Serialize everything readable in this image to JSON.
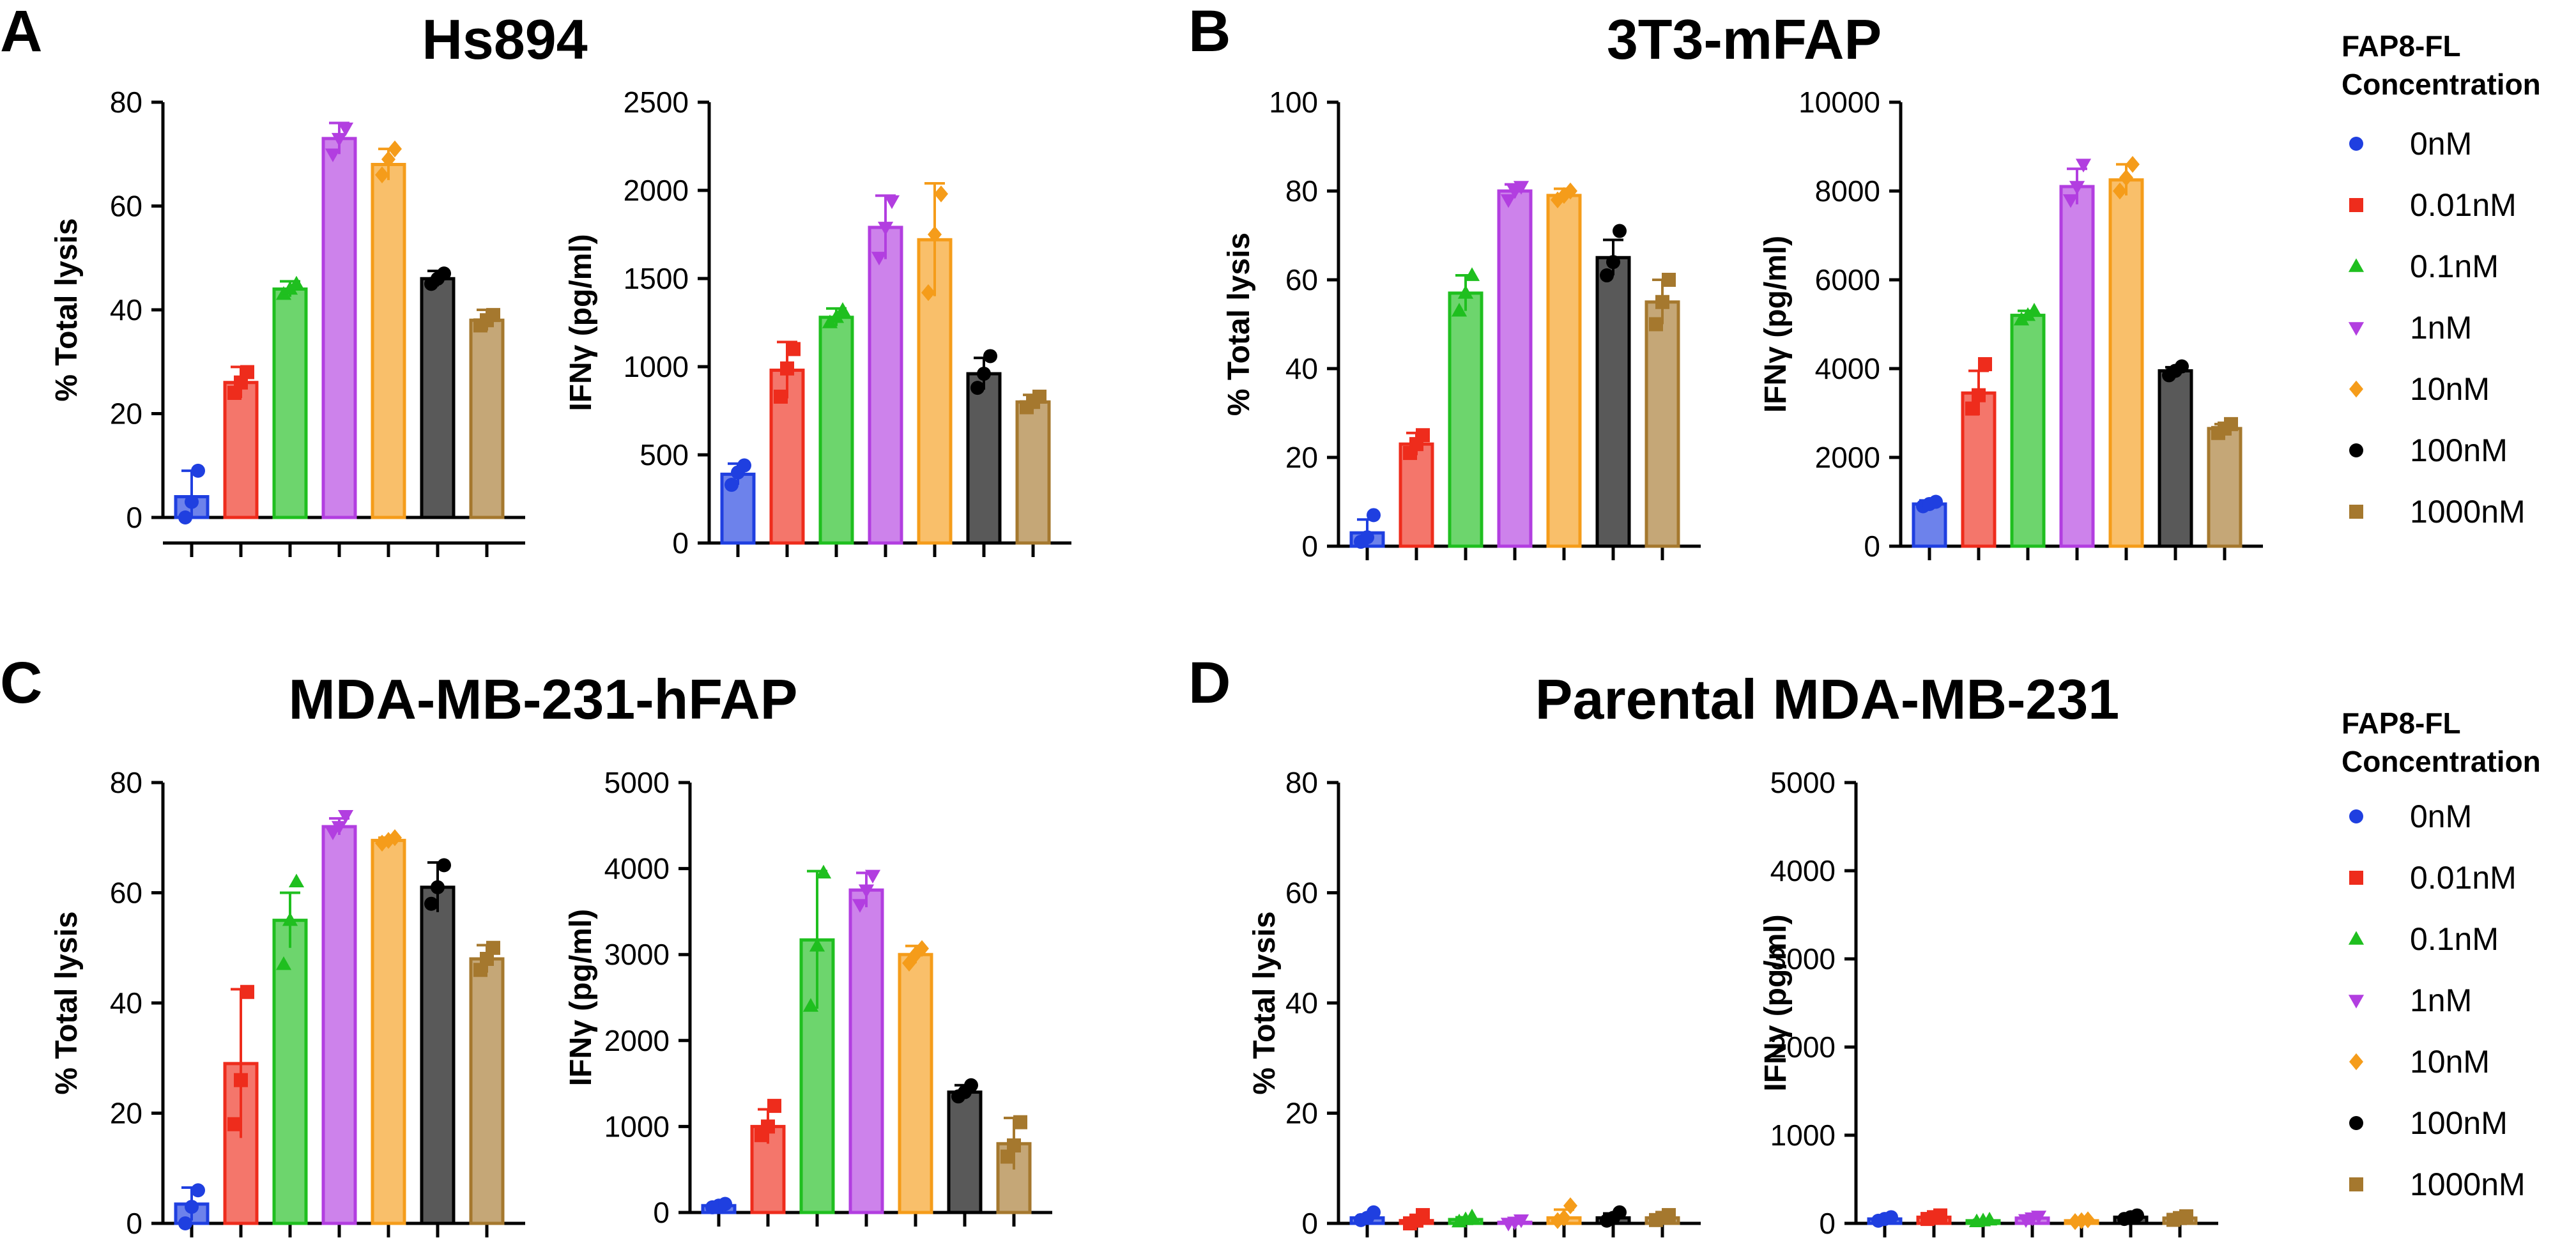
{
  "figure": {
    "panels": [
      {
        "letter": "A",
        "title": "Hs894"
      },
      {
        "letter": "B",
        "title": "3T3-mFAP"
      },
      {
        "letter": "C",
        "title": "MDA-MB-231-hFAP"
      },
      {
        "letter": "D",
        "title": "Parental MDA-MB-231"
      }
    ],
    "legends": [
      {
        "title_line1": "FAP8-FL",
        "title_line2": "Concentration",
        "entries": [
          {
            "label": "0nM",
            "color": "#1f3fe0",
            "marker": "circle"
          },
          {
            "label": "0.01nM",
            "color": "#ee2c1c",
            "marker": "square"
          },
          {
            "label": "0.1nM",
            "color": "#1fbf1f",
            "marker": "triangle-up"
          },
          {
            "label": "1nM",
            "color": "#b23ee0",
            "marker": "triangle-down"
          },
          {
            "label": "10nM",
            "color": "#f59c1a",
            "marker": "diamond"
          },
          {
            "label": "100nM",
            "color": "#000000",
            "marker": "circle"
          },
          {
            "label": "1000nM",
            "color": "#a5782e",
            "marker": "square"
          }
        ]
      },
      {
        "title_line1": "FAP8-FL",
        "title_line2": "Concentration",
        "entries": [
          {
            "label": "0nM",
            "color": "#1f3fe0",
            "marker": "circle"
          },
          {
            "label": "0.01nM",
            "color": "#ee2c1c",
            "marker": "square"
          },
          {
            "label": "0.1nM",
            "color": "#1fbf1f",
            "marker": "triangle-up"
          },
          {
            "label": "1nM",
            "color": "#b23ee0",
            "marker": "triangle-down"
          },
          {
            "label": "10nM",
            "color": "#f59c1a",
            "marker": "diamond"
          },
          {
            "label": "100nM",
            "color": "#000000",
            "marker": "circle"
          },
          {
            "label": "1000nM",
            "color": "#a5782e",
            "marker": "square"
          }
        ]
      }
    ]
  },
  "chart_data": [
    {
      "type": "bar",
      "panel": "A",
      "title": "Hs894",
      "ylabel": "% Total lysis",
      "categories": [
        "0nM",
        "0.01nM",
        "0.1nM",
        "1nM",
        "10nM",
        "100nM",
        "1000nM"
      ],
      "ylim": [
        0,
        80
      ],
      "yticks": [
        "0",
        "20",
        "40",
        "60",
        "80"
      ],
      "values": [
        4,
        26,
        44,
        73,
        68,
        46,
        38
      ],
      "errors": [
        5,
        3,
        1.5,
        3,
        3,
        1.5,
        2
      ],
      "points": [
        [
          0,
          3,
          9
        ],
        [
          24,
          26,
          28
        ],
        [
          43,
          44,
          45
        ],
        [
          70,
          73,
          75
        ],
        [
          66,
          69,
          71
        ],
        [
          45,
          46,
          47
        ],
        [
          37,
          38,
          39
        ]
      ]
    },
    {
      "type": "bar",
      "panel": "A",
      "title": "Hs894",
      "ylabel": "IFNγ (pg/ml)",
      "categories": [
        "0nM",
        "0.01nM",
        "0.1nM",
        "1nM",
        "10nM",
        "100nM",
        "1000nM"
      ],
      "ylim": [
        0,
        2500
      ],
      "yticks": [
        "0",
        "500",
        "1000",
        "1500",
        "2000",
        "2500"
      ],
      "values": [
        390,
        980,
        1280,
        1790,
        1720,
        960,
        800
      ],
      "errors": [
        60,
        160,
        50,
        180,
        320,
        90,
        40
      ],
      "points": [
        [
          330,
          400,
          440
        ],
        [
          830,
          990,
          1100
        ],
        [
          1250,
          1280,
          1320
        ],
        [
          1620,
          1790,
          1940
        ],
        [
          1420,
          1750,
          1980
        ],
        [
          880,
          960,
          1060
        ],
        [
          770,
          800,
          830
        ]
      ]
    },
    {
      "type": "bar",
      "panel": "B",
      "title": "3T3-mFAP",
      "ylabel": "% Total lysis",
      "categories": [
        "0nM",
        "0.01nM",
        "0.1nM",
        "1nM",
        "10nM",
        "100nM",
        "1000nM"
      ],
      "ylim": [
        0,
        100
      ],
      "yticks": [
        "0",
        "20",
        "40",
        "60",
        "80",
        "100"
      ],
      "values": [
        3,
        23,
        57,
        80,
        79,
        65,
        55
      ],
      "errors": [
        3,
        2.5,
        4,
        1.5,
        1.5,
        4,
        5
      ],
      "points": [
        [
          1,
          2,
          7
        ],
        [
          21,
          23,
          25
        ],
        [
          53,
          57,
          61
        ],
        [
          78,
          80,
          81
        ],
        [
          78,
          79,
          80
        ],
        [
          61,
          64,
          71
        ],
        [
          50,
          55,
          60
        ]
      ]
    },
    {
      "type": "bar",
      "panel": "B",
      "title": "3T3-mFAP",
      "ylabel": "IFNγ (pg/ml)",
      "categories": [
        "0nM",
        "0.01nM",
        "0.1nM",
        "1nM",
        "10nM",
        "100nM",
        "1000nM"
      ],
      "ylim": [
        0,
        10000
      ],
      "yticks": [
        "0",
        "2000",
        "4000",
        "6000",
        "8000",
        "10000"
      ],
      "values": [
        950,
        3450,
        5200,
        8100,
        8250,
        3950,
        2650
      ],
      "errors": [
        80,
        500,
        100,
        400,
        350,
        80,
        100
      ],
      "points": [
        [
          900,
          950,
          1000
        ],
        [
          3100,
          3400,
          4100
        ],
        [
          5100,
          5200,
          5300
        ],
        [
          7800,
          8100,
          8600
        ],
        [
          8000,
          8300,
          8600
        ],
        [
          3850,
          3950,
          4050
        ],
        [
          2550,
          2650,
          2750
        ]
      ]
    },
    {
      "type": "bar",
      "panel": "C",
      "title": "MDA-MB-231-hFAP",
      "ylabel": "% Total lysis",
      "categories": [
        "0nM",
        "0.01nM",
        "0.1nM",
        "1nM",
        "10nM",
        "100nM",
        "1000nM"
      ],
      "ylim": [
        0,
        80
      ],
      "yticks": [
        "0",
        "20",
        "40",
        "60",
        "80"
      ],
      "values": [
        3.5,
        29,
        55,
        72,
        69.5,
        61,
        48
      ],
      "errors": [
        3,
        13.5,
        5,
        1.5,
        0.5,
        4.5,
        2.5
      ],
      "points": [
        [
          0,
          3,
          6
        ],
        [
          18,
          26,
          42
        ],
        [
          47,
          55,
          62
        ],
        [
          71,
          72,
          74
        ],
        [
          69,
          69.5,
          70
        ],
        [
          58,
          61,
          65
        ],
        [
          46,
          48,
          50
        ]
      ]
    },
    {
      "type": "bar",
      "panel": "C",
      "title": "MDA-MB-231-hFAP",
      "ylabel": "IFNγ (pg/ml)",
      "categories": [
        "0nM",
        "0.01nM",
        "0.1nM",
        "1nM",
        "10nM",
        "100nM",
        "1000nM"
      ],
      "ylim": [
        0,
        5000
      ],
      "yticks": [
        "0",
        "1000",
        "2000",
        "3000",
        "4000",
        "5000"
      ],
      "values": [
        80,
        1000,
        3170,
        3750,
        3000,
        1400,
        800
      ],
      "errors": [
        30,
        200,
        800,
        200,
        100,
        80,
        300
      ],
      "points": [
        [
          60,
          80,
          100
        ],
        [
          900,
          1000,
          1240
        ],
        [
          2400,
          3100,
          3950
        ],
        [
          3580,
          3750,
          3920
        ],
        [
          2900,
          3000,
          3070
        ],
        [
          1350,
          1400,
          1480
        ],
        [
          650,
          780,
          1050
        ]
      ]
    },
    {
      "type": "bar",
      "panel": "D",
      "title": "Parental MDA-MB-231",
      "ylabel": "% Total lysis",
      "categories": [
        "0nM",
        "0.01nM",
        "0.1nM",
        "1nM",
        "10nM",
        "100nM",
        "1000nM"
      ],
      "ylim": [
        0,
        80
      ],
      "yticks": [
        "0",
        "20",
        "40",
        "60",
        "80"
      ],
      "values": [
        1,
        0.5,
        0.7,
        0.2,
        1,
        1,
        1
      ],
      "errors": [
        0.5,
        0.5,
        0.4,
        0.3,
        1.5,
        0.8,
        0.5
      ],
      "points": [
        [
          0.6,
          1,
          2
        ],
        [
          0,
          0.5,
          1.5
        ],
        [
          0.3,
          0.7,
          1.2
        ],
        [
          0,
          0.2,
          0.6
        ],
        [
          0.5,
          1,
          3.2
        ],
        [
          0.5,
          1,
          2
        ],
        [
          0.6,
          1,
          1.5
        ]
      ]
    },
    {
      "type": "bar",
      "panel": "D",
      "title": "Parental MDA-MB-231",
      "ylabel": "IFNγ (pg/ml)",
      "categories": [
        "0nM",
        "0.01nM",
        "0.1nM",
        "1nM",
        "10nM",
        "100nM",
        "1000nM"
      ],
      "ylim": [
        0,
        5000
      ],
      "yticks": [
        "0",
        "1000",
        "2000",
        "3000",
        "4000",
        "5000"
      ],
      "values": [
        50,
        70,
        30,
        60,
        30,
        70,
        60
      ],
      "errors": [
        20,
        20,
        10,
        20,
        10,
        20,
        20
      ],
      "points": [
        [
          30,
          50,
          70
        ],
        [
          50,
          70,
          90
        ],
        [
          20,
          30,
          40
        ],
        [
          40,
          60,
          80
        ],
        [
          20,
          30,
          40
        ],
        [
          50,
          70,
          90
        ],
        [
          40,
          60,
          80
        ]
      ]
    }
  ]
}
